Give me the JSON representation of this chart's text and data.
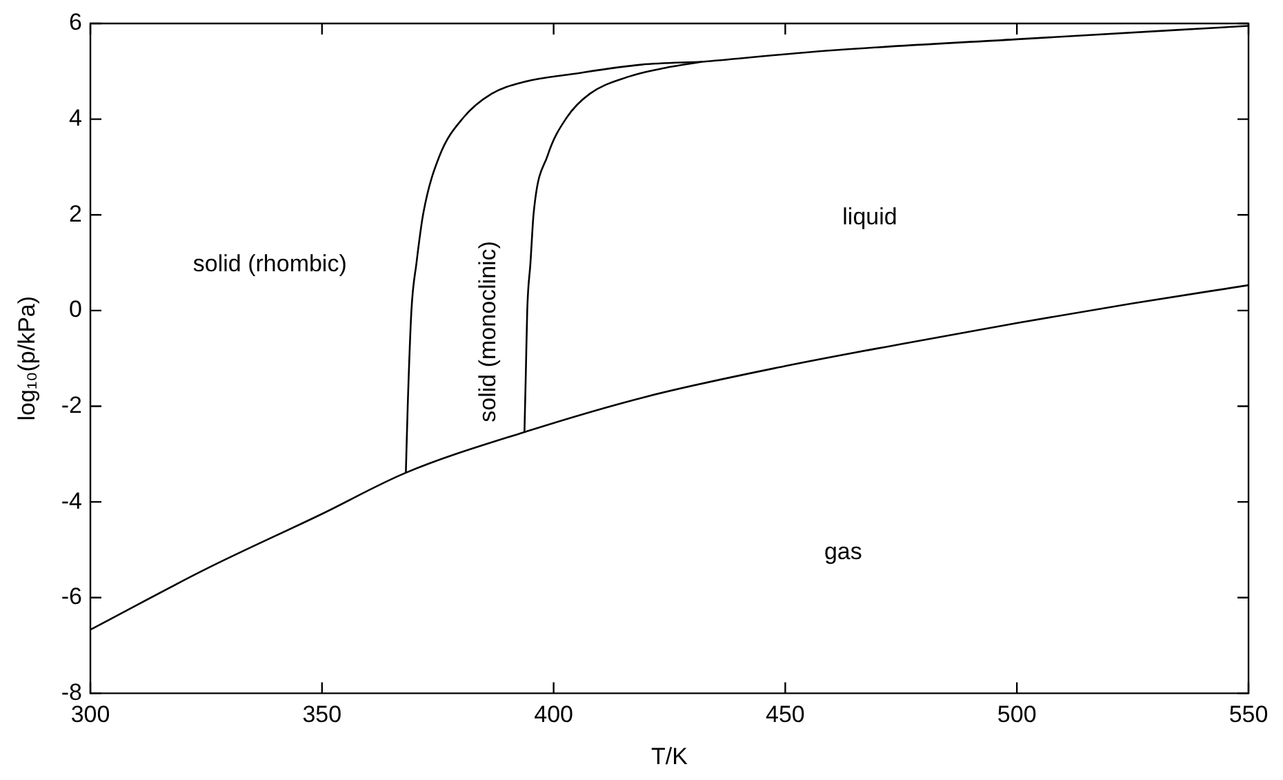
{
  "chart_data": {
    "type": "line",
    "xlabel": "T/K",
    "ylabel": "log₁₀(p/kPa)",
    "xlim": [
      300,
      550
    ],
    "xticks": [
      300,
      350,
      400,
      450,
      500,
      550
    ],
    "ylim": [
      -8,
      6
    ],
    "yticks": [
      -8,
      -6,
      -4,
      -2,
      0,
      2,
      4,
      6
    ],
    "grid": false,
    "legend": false,
    "marker": "none",
    "line_style": "solid",
    "series": [
      {
        "color": "#000000",
        "x": [
          300,
          325,
          350,
          368.1,
          393.7,
          420,
          450,
          475,
          500,
          525,
          550
        ],
        "values": [
          -6.67,
          -5.4,
          -4.25,
          -3.39,
          -2.54,
          -1.8,
          -1.16,
          -0.7,
          -0.26,
          0.15,
          0.53
        ]
      },
      {
        "color": "#000000",
        "x": [
          368.1,
          368.5,
          369.3,
          370.4,
          371.9,
          375.4,
          380.5,
          386.6,
          393.7,
          403.8,
          419,
          432.1
        ],
        "values": [
          -3.39,
          -2,
          0,
          1,
          2.05,
          3.24,
          4.03,
          4.53,
          4.78,
          4.94,
          5.14,
          5.2
        ]
      },
      {
        "color": "#000000",
        "x": [
          393.7,
          394,
          394.3,
          395,
          395.7,
          398.7,
          402.8,
          407.8,
          415.9,
          424,
          432.1
        ],
        "values": [
          -2.54,
          -1.3,
          0,
          1,
          2.05,
          3.24,
          4.03,
          4.53,
          4.88,
          5.07,
          5.2
        ]
      },
      {
        "color": "#000000",
        "x": [
          432.1,
          460.5,
          500,
          550
        ],
        "values": [
          5.2,
          5.44,
          5.67,
          5.95
        ]
      }
    ],
    "annotations": [
      "solid (rhombic)",
      "solid (monoclinic)",
      "liquid",
      "gas"
    ]
  }
}
